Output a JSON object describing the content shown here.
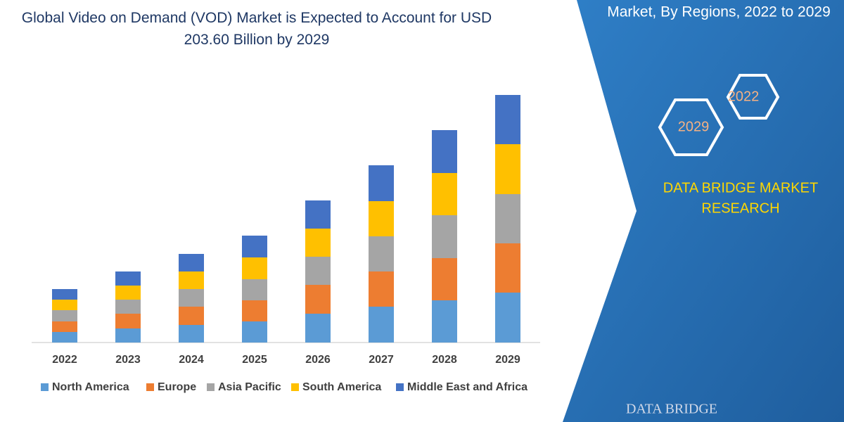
{
  "chart_data": {
    "type": "bar",
    "stacked": true,
    "title": "Global Video on Demand (VOD) Market is Expected to Account for USD 203.60 Billion by 2029",
    "categories": [
      "2022",
      "2023",
      "2024",
      "2025",
      "2026",
      "2027",
      "2028",
      "2029"
    ],
    "series": [
      {
        "name": "North America",
        "color": "#5b9bd5",
        "values": [
          15,
          20,
          25,
          30,
          41,
          51,
          60,
          71
        ]
      },
      {
        "name": "Europe",
        "color": "#ed7d31",
        "values": [
          15,
          21,
          26,
          30,
          41,
          50,
          60,
          70
        ]
      },
      {
        "name": "Asia Pacific",
        "color": "#a5a5a5",
        "values": [
          16,
          20,
          25,
          30,
          40,
          50,
          61,
          70
        ]
      },
      {
        "name": "South America",
        "color": "#ffc000",
        "values": [
          15,
          20,
          25,
          31,
          40,
          50,
          60,
          71
        ]
      },
      {
        "name": "Middle East and Africa",
        "color": "#4472c4",
        "values": [
          15,
          20,
          25,
          31,
          40,
          51,
          61,
          70
        ]
      }
    ]
  },
  "side_panel": {
    "title": "Market, By Regions, 2022 to 2029",
    "hexagons": [
      "2022",
      "2029"
    ],
    "brand_lines": [
      "DATA BRIDGE MARKET",
      "RESEARCH"
    ],
    "logo": "DATA BRIDGE"
  }
}
